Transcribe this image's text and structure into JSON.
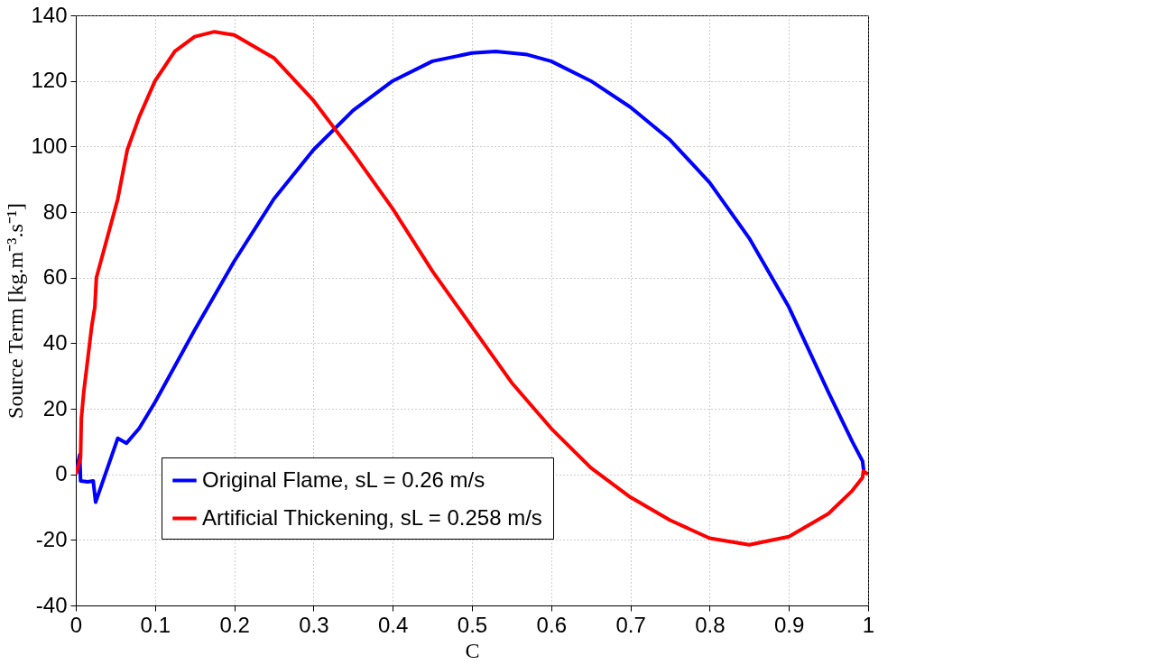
{
  "chart_data": {
    "type": "line",
    "xlabel": "C",
    "ylabel": "Source Term [kg.m⁻³.s⁻¹]",
    "xlim": [
      0,
      1
    ],
    "xticks": [
      0,
      0.1,
      0.2,
      0.3,
      0.4,
      0.5,
      0.6,
      0.7,
      0.8,
      0.9,
      1
    ],
    "ylim": [
      -40,
      140
    ],
    "yticks": [
      -40,
      -20,
      0,
      20,
      40,
      60,
      80,
      100,
      120,
      140
    ],
    "grid": true,
    "legend": "bottom left",
    "line_style": "solid",
    "marker": "none",
    "series": [
      {
        "name": "Original Flame, sL = 0.26 m/s",
        "color": "#0000ff",
        "x": [
          0,
          0.005,
          0.006,
          0.015,
          0.022,
          0.025,
          0.053,
          0.064,
          0.08,
          0.1,
          0.15,
          0.2,
          0.25,
          0.3,
          0.35,
          0.4,
          0.45,
          0.5,
          0.53,
          0.57,
          0.6,
          0.65,
          0.7,
          0.75,
          0.8,
          0.85,
          0.9,
          0.95,
          0.98,
          0.993,
          0.995
        ],
        "values": [
          0,
          6,
          -2,
          -2.3,
          -2,
          -8.5,
          11,
          9.5,
          14,
          22,
          44,
          65,
          84,
          99,
          111,
          120,
          126,
          128.5,
          129,
          128,
          126,
          120,
          112,
          102,
          89,
          72,
          51,
          25,
          10,
          4,
          0
        ]
      },
      {
        "name": "Artificial Thickening, sL = 0.258 m/s",
        "color": "#ff0000",
        "x": [
          0,
          0.006,
          0.007,
          0.01,
          0.02,
          0.024,
          0.026,
          0.053,
          0.065,
          0.08,
          0.1,
          0.125,
          0.15,
          0.175,
          0.2,
          0.25,
          0.3,
          0.35,
          0.4,
          0.45,
          0.5,
          0.55,
          0.6,
          0.65,
          0.7,
          0.75,
          0.8,
          0.85,
          0.9,
          0.95,
          0.98,
          0.993,
          0.994,
          1
        ],
        "values": [
          0,
          5,
          17,
          25,
          45,
          51,
          60,
          84,
          99,
          109,
          120,
          129,
          133.5,
          135,
          134,
          127,
          114,
          98,
          81,
          62,
          45,
          28,
          14,
          2,
          -7,
          -14,
          -19.5,
          -21.5,
          -19,
          -12,
          -5,
          -1,
          1,
          0
        ]
      }
    ]
  }
}
